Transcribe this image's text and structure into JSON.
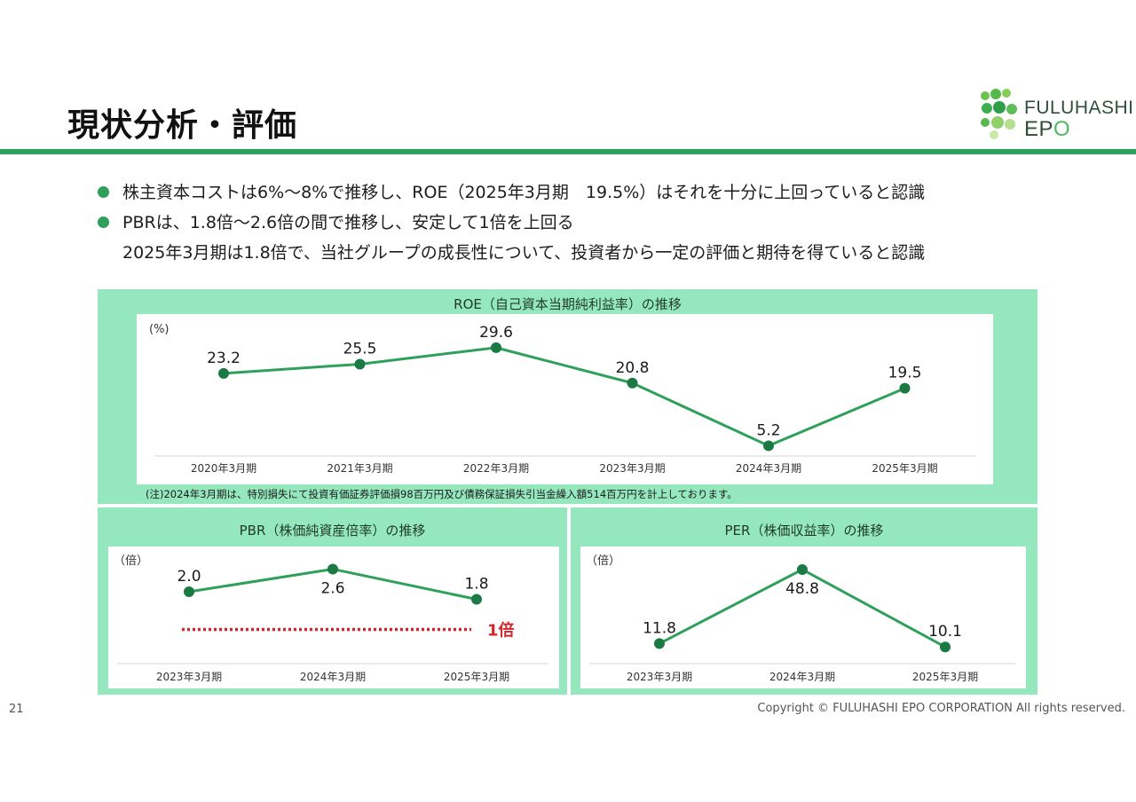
{
  "header": {
    "title": "現状分析・評価",
    "logo": {
      "line1": "FULUHASHI",
      "line2_prefix": "EP",
      "line2_accent": "O"
    }
  },
  "bullets": [
    {
      "text": "株主資本コストは6%～8%で推移し、ROE（2025年3月期　19.5%）はそれを十分に上回っていると認識",
      "continuation": ""
    },
    {
      "text": "PBRは、1.8倍～2.6倍の間で推移し、安定して1倍を上回る",
      "continuation": "2025年3月期は1.8倍で、当社グループの成長性について、投資者から一定の評価と期待を得ていると認識"
    }
  ],
  "colors": {
    "accent": "#2fa05a",
    "panel": "#95e8bd",
    "marker": "#1b7a43",
    "threshold": "#d0262c"
  },
  "chart_data": [
    {
      "type": "line",
      "title": "ROE（自己資本当期純利益率）の推移",
      "ylabel": "(%)",
      "categories": [
        "2020年3月期",
        "2021年3月期",
        "2022年3月期",
        "2023年3月期",
        "2024年3月期",
        "2025年3月期"
      ],
      "values": [
        23.2,
        25.5,
        29.6,
        20.8,
        5.2,
        19.5
      ],
      "labels": [
        "23.2",
        "25.5",
        "29.6",
        "20.8",
        "5.2",
        "19.5"
      ],
      "ylim": [
        0,
        32
      ],
      "note": "(注)2024年3月期は、特別損失にて投資有価証券評価損98百万円及び債務保証損失引当金繰入額514百万円を計上しております。"
    },
    {
      "type": "line",
      "title": "PBR（株価純資産倍率）の推移",
      "ylabel": "（倍）",
      "categories": [
        "2023年3月期",
        "2024年3月期",
        "2025年3月期"
      ],
      "values": [
        2.0,
        2.6,
        1.8
      ],
      "labels": [
        "2.0",
        "2.6",
        "1.8"
      ],
      "ylim": [
        0,
        3.2
      ],
      "threshold": {
        "value": 1.0,
        "label": "1倍"
      }
    },
    {
      "type": "line",
      "title": "PER（株価収益率）の推移",
      "ylabel": "（倍）",
      "categories": [
        "2023年3月期",
        "2024年3月期",
        "2025年3月期"
      ],
      "values": [
        11.8,
        48.8,
        10.1
      ],
      "labels": [
        "11.8",
        "48.8",
        "10.1"
      ],
      "ylim": [
        0,
        55
      ]
    }
  ],
  "footer": {
    "page_number": "21",
    "copyright": "Copyright © FULUHASHI EPO CORPORATION All rights reserved."
  }
}
